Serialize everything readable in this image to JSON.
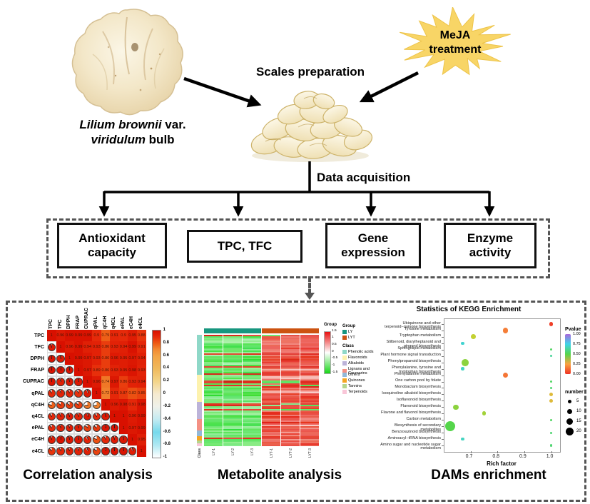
{
  "top_section": {
    "bulb_caption": {
      "i1": "Lilium brownii",
      "p1": " var.",
      "i2": "viridulum",
      "p2": " bulb"
    },
    "scales_caption": "Scales preparation",
    "meja_lines": [
      "MeJA",
      "treatment"
    ],
    "starburst_color": "#f8d566"
  },
  "flow": {
    "data_acquisition": "Data acquisition",
    "boxes": [
      {
        "label": "Antioxidant capacity"
      },
      {
        "label": "TPC, TFC"
      },
      {
        "label": "Gene expression"
      },
      {
        "label": "Enzyme activity"
      }
    ]
  },
  "captions": {
    "correlation": "Correlation analysis",
    "metabolite": "Metabolite analysis",
    "kegg": "DAMs enrichment"
  },
  "chart_data": [
    {
      "type": "heatmap",
      "name": "correlation_matrix",
      "layout": "upper triangle = correlation values, lower triangle = pie glyphs, diagonal = 1",
      "labels": [
        "TPC",
        "TFC",
        "DPPH",
        "FRAP",
        "CUPRAC",
        "qPAL",
        "qC4H",
        "q4CL",
        "ePAL",
        "eC4H",
        "e4CL"
      ],
      "upper_triangle": [
        [
          0.96,
          0.99,
          0.99,
          0.99,
          0.9,
          0.79,
          0.91,
          0.9,
          0.95,
          0.88
        ],
        [
          0.96,
          0.99,
          0.94,
          0.93,
          0.86,
          0.93,
          0.94,
          0.99,
          0.91
        ],
        [
          0.99,
          0.97,
          0.93,
          0.86,
          0.96,
          0.95,
          0.97,
          0.94
        ],
        [
          0.97,
          0.89,
          0.86,
          0.93,
          0.95,
          0.98,
          0.93
        ],
        [
          0.96,
          0.74,
          0.97,
          0.86,
          0.93,
          0.94
        ],
        [
          0.72,
          0.91,
          0.87,
          0.82,
          0.85
        ],
        [
          0.96,
          0.98,
          0.91,
          0.98
        ],
        [
          1.0,
          0.96,
          0.99
        ],
        [
          0.97,
          0.99
        ],
        [
          0.95
        ]
      ],
      "colorbar_ticks": [
        1,
        0.8,
        0.6,
        0.4,
        0.2,
        0,
        -0.2,
        -0.4,
        -0.6,
        -0.8,
        -1
      ],
      "color_stops": [
        [
          1,
          "#d81000"
        ],
        [
          0.9,
          "#e62a0a"
        ],
        [
          0.8,
          "#ee5a14"
        ],
        [
          0.7,
          "#f28a32"
        ],
        [
          0.6,
          "#f3a344"
        ],
        [
          0.4,
          "#f0b95c"
        ],
        [
          0.2,
          "#f3d488"
        ],
        [
          0,
          "#f5ead0"
        ],
        [
          -0.2,
          "#eff1ea"
        ],
        [
          -0.4,
          "#c3ebf2"
        ],
        [
          -0.6,
          "#76d9ec"
        ],
        [
          -0.8,
          "#aee8f2"
        ],
        [
          -1,
          "#ffffff"
        ]
      ]
    },
    {
      "type": "heatmap",
      "name": "metabolite_heatmap",
      "annotation_title": "Group",
      "groups": [
        {
          "name": "LY",
          "color": "#17967f"
        },
        {
          "name": "LYT",
          "color": "#cc5210"
        }
      ],
      "samples": [
        "LY-1",
        "LY-2",
        "LY-3",
        "LYT-1",
        "LYT-2",
        "LYT-3"
      ],
      "scale_ticks": [
        1.5,
        1,
        0.5,
        0,
        -0.5,
        -1,
        -1.5
      ],
      "scale_colors": [
        "#e81010",
        "#ffffff",
        "#17d617"
      ],
      "legend_titles": {
        "group": "Group",
        "class": "Class"
      },
      "class_axis_label": "Class",
      "classes": [
        {
          "name": "Phenolic acids",
          "color": "#8fd8c8",
          "fraction": 0.36
        },
        {
          "name": "Flavonoids",
          "color": "#fdf2ae",
          "fraction": 0.24
        },
        {
          "name": "Alkaloids",
          "color": "#bcb3d9",
          "fraction": 0.16
        },
        {
          "name": "Lignans and Coumarins",
          "color": "#f49084",
          "fraction": 0.1
        },
        {
          "name": "Others",
          "color": "#92b8d8",
          "fraction": 0.055
        },
        {
          "name": "Quinones",
          "color": "#f5a623",
          "fraction": 0.035
        },
        {
          "name": "Tannins",
          "color": "#b5d68d",
          "fraction": 0.025
        },
        {
          "name": "Terpenoids",
          "color": "#f9c6d8",
          "fraction": 0.025
        }
      ],
      "pattern_note": "left group mostly down-regulated (green), right group mostly up-regulated (red)"
    },
    {
      "type": "scatter",
      "name": "kegg_enrichment",
      "title": "Statistics of KEGG Enrichment",
      "xlabel": "Rich factor",
      "x_ticks": [
        0.7,
        0.8,
        0.9,
        1.0
      ],
      "xlim": [
        0.6,
        1.03
      ],
      "pvalue_legend": {
        "title": "Pvalue",
        "ticks": [
          "1.00",
          "0.75",
          "0.50",
          "0.25",
          "0.00"
        ]
      },
      "size_legend": {
        "title": "number",
        "sizes": [
          5,
          10,
          15,
          20
        ]
      },
      "pvalue_color_stops": [
        [
          0,
          "#ee3124"
        ],
        [
          0.25,
          "#f9a242"
        ],
        [
          0.45,
          "#c3d132"
        ],
        [
          0.55,
          "#55d54b"
        ],
        [
          0.75,
          "#3fd3e8"
        ],
        [
          1,
          "#a868dd"
        ]
      ],
      "points": [
        {
          "pathway": "Ubiquinone and other terpenoid−quinone biosynthesis",
          "rich_factor": 1.0,
          "pvalue": 0.03,
          "number": 6
        },
        {
          "pathway": "Tyrosine metabolism",
          "rich_factor": 0.83,
          "pvalue": 0.17,
          "number": 9
        },
        {
          "pathway": "Tryptophan metabolism",
          "rich_factor": 0.71,
          "pvalue": 0.45,
          "number": 8
        },
        {
          "pathway": "Stilbenoid, diarylheptanoid and gingerol biosynthesis",
          "rich_factor": 0.67,
          "pvalue": 0.72,
          "number": 4
        },
        {
          "pathway": "Sphingolipid metabolism",
          "rich_factor": 1.0,
          "pvalue": 0.58,
          "number": 2
        },
        {
          "pathway": "Plant hormone signal transduction",
          "rich_factor": 1.0,
          "pvalue": 0.65,
          "number": 2
        },
        {
          "pathway": "Phenylpropanoid biosynthesis",
          "rich_factor": 0.68,
          "pvalue": 0.5,
          "number": 13
        },
        {
          "pathway": "Phenylalanine, tyrosine and tryptophan biosynthesis",
          "rich_factor": 0.67,
          "pvalue": 0.7,
          "number": 4
        },
        {
          "pathway": "Phenylalanine metabolism",
          "rich_factor": 0.83,
          "pvalue": 0.15,
          "number": 9
        },
        {
          "pathway": "One carbon pool by folate",
          "rich_factor": 1.0,
          "pvalue": 0.58,
          "number": 2
        },
        {
          "pathway": "Monobactam biosynthesis",
          "rich_factor": 1.0,
          "pvalue": 0.6,
          "number": 2
        },
        {
          "pathway": "Isoquinoline alkaloid biosynthesis",
          "rich_factor": 1.0,
          "pvalue": 0.35,
          "number": 5
        },
        {
          "pathway": "Isoflavonoid biosynthesis",
          "rich_factor": 1.0,
          "pvalue": 0.35,
          "number": 5
        },
        {
          "pathway": "Flavonoid biosynthesis",
          "rich_factor": 0.645,
          "pvalue": 0.5,
          "number": 9
        },
        {
          "pathway": "Flavone and flavonol biosynthesis",
          "rich_factor": 0.75,
          "pvalue": 0.48,
          "number": 6
        },
        {
          "pathway": "Carbon metabolism",
          "rich_factor": 1.0,
          "pvalue": 0.58,
          "number": 2
        },
        {
          "pathway": "Biosynthesis of secondary metabolites",
          "rich_factor": 0.625,
          "pvalue": 0.55,
          "number": 20
        },
        {
          "pathway": "Benzoxazinoid biosynthesis",
          "rich_factor": 1.0,
          "pvalue": 0.6,
          "number": 2
        },
        {
          "pathway": "Aminoacyl−tRNA biosynthesis",
          "rich_factor": 0.67,
          "pvalue": 0.7,
          "number": 4
        },
        {
          "pathway": "Amino sugar and nucleotide sugar metabolism",
          "rich_factor": 1.0,
          "pvalue": 0.6,
          "number": 2
        }
      ]
    }
  ]
}
